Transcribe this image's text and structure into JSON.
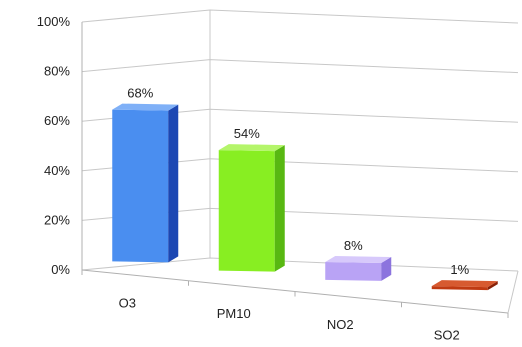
{
  "chart_data": {
    "type": "bar",
    "title": "",
    "xlabel": "",
    "ylabel": "",
    "categories": [
      "O3",
      "PM10",
      "NO2",
      "SO2"
    ],
    "values": [
      68,
      54,
      8,
      1
    ],
    "value_labels": [
      "68%",
      "54%",
      "8%",
      "1%"
    ],
    "y_ticks": [
      "0%",
      "20%",
      "40%",
      "60%",
      "80%",
      "100%"
    ],
    "ylim": [
      0,
      100
    ],
    "grid": true,
    "legend": "none",
    "colors": [
      {
        "front": "#4a8ef0",
        "side": "#1c47b3",
        "top": "#7fb0f7"
      },
      {
        "front": "#88ee22",
        "side": "#58b812",
        "top": "#b4f56a"
      },
      {
        "front": "#b9a3f5",
        "side": "#8c74de",
        "top": "#d7c9fb"
      },
      {
        "front": "#c03a12",
        "side": "#8a2208",
        "top": "#d75a30"
      }
    ]
  }
}
